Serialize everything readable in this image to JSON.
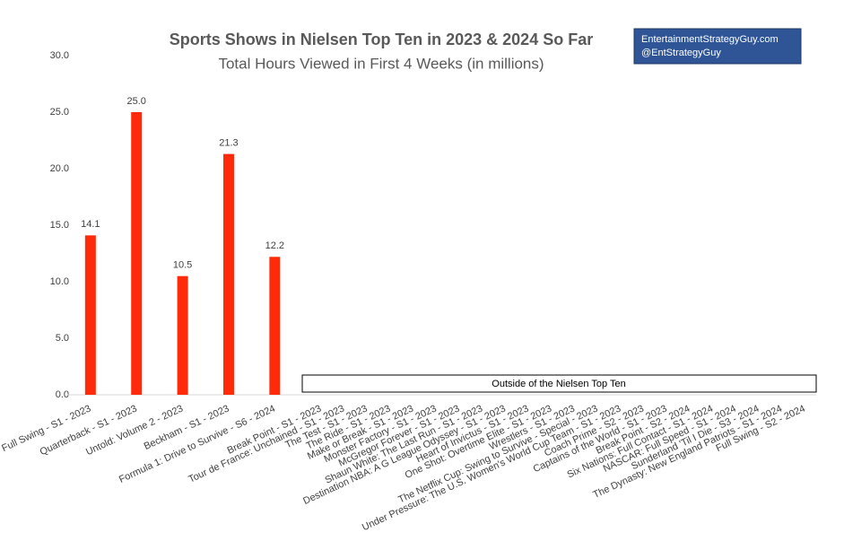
{
  "chart_data": {
    "type": "bar",
    "title": "Sports Shows in Nielsen Top Ten in 2023 & 2024 So Far",
    "subtitle": "Total Hours Viewed in First 4 Weeks (in millions)",
    "annotation": "Outside of the Nielsen Top Ten",
    "watermark": [
      "EntertainmentStrategyGuy.com",
      "@EntStrategyGuy"
    ],
    "categories": [
      "Full Swing - S1 - 2023",
      null,
      "Quarterback - S1 - 2023",
      null,
      "Untold: Volume 2 - 2023",
      null,
      "Beckham - S1 - 2023",
      null,
      "Formula 1: Drive to Survive - S6 - 2024",
      null,
      "Break Point - S1 - 2023",
      "Tour de France: Unchained - S1 - 2023",
      "The Test - S1 - 2023",
      "The Ride - S1 - 2023",
      "Make or Break - S1 - 2023",
      "Monster Factory - S1 - 2023",
      "McGregor Forever - S1 - 2023",
      "Shaun White: The Last Run - S1 - 2023",
      "Destination NBA: A G League Odyssey - S1 - 2023",
      "Heart of Invictus - S1 - 2023",
      "One Shot: Overtime Elite - S1 - 2023",
      "Wrestlers - S1 - 2023",
      "The Netflix Cup: Swing to Survive - Special - 2023",
      "Under Pressure: The U.S. Women's World Cup Team - S1 - 2023",
      "Coach Prime - S2 - 2023",
      "Captains of the World - S1 - 2023",
      "Break Point - S2 - 2024",
      "Six Nations: Full Contact - S1 - 2024",
      "NASCAR: Full Speed - S1 - 2024",
      "Sunderland 'Til I Die - S3 - 2024",
      "The Dynasty: New England Patriots - S1 - 2024",
      "Full Swing - S2 - 2024"
    ],
    "values": [
      14.1,
      null,
      25,
      null,
      10.5,
      null,
      21.3,
      null,
      12.2,
      null,
      null,
      null,
      null,
      null,
      null,
      null,
      null,
      null,
      null,
      null,
      null,
      null,
      null,
      null,
      null,
      null,
      null,
      null,
      null,
      null,
      null,
      null
    ],
    "value_labels": [
      "14.1",
      null,
      "25.0",
      null,
      "10.5",
      null,
      "21.3",
      null,
      "12.2",
      null,
      null,
      null,
      null,
      null,
      null,
      null,
      null,
      null,
      null,
      null,
      null,
      null,
      null,
      null,
      null,
      null,
      null,
      null,
      null,
      null,
      null,
      null
    ],
    "color": "#ff2a0a",
    "ylim": [
      0,
      30
    ],
    "yticks": [
      {
        "value": 0,
        "label": "0.0"
      },
      {
        "value": 5,
        "label": "5.0"
      },
      {
        "value": 10,
        "label": "10.0"
      },
      {
        "value": 15,
        "label": "15.0"
      },
      {
        "value": 20,
        "label": "20.0"
      },
      {
        "value": 25,
        "label": "25.0"
      },
      {
        "value": 30,
        "label": "30.0"
      }
    ],
    "grid": false
  }
}
